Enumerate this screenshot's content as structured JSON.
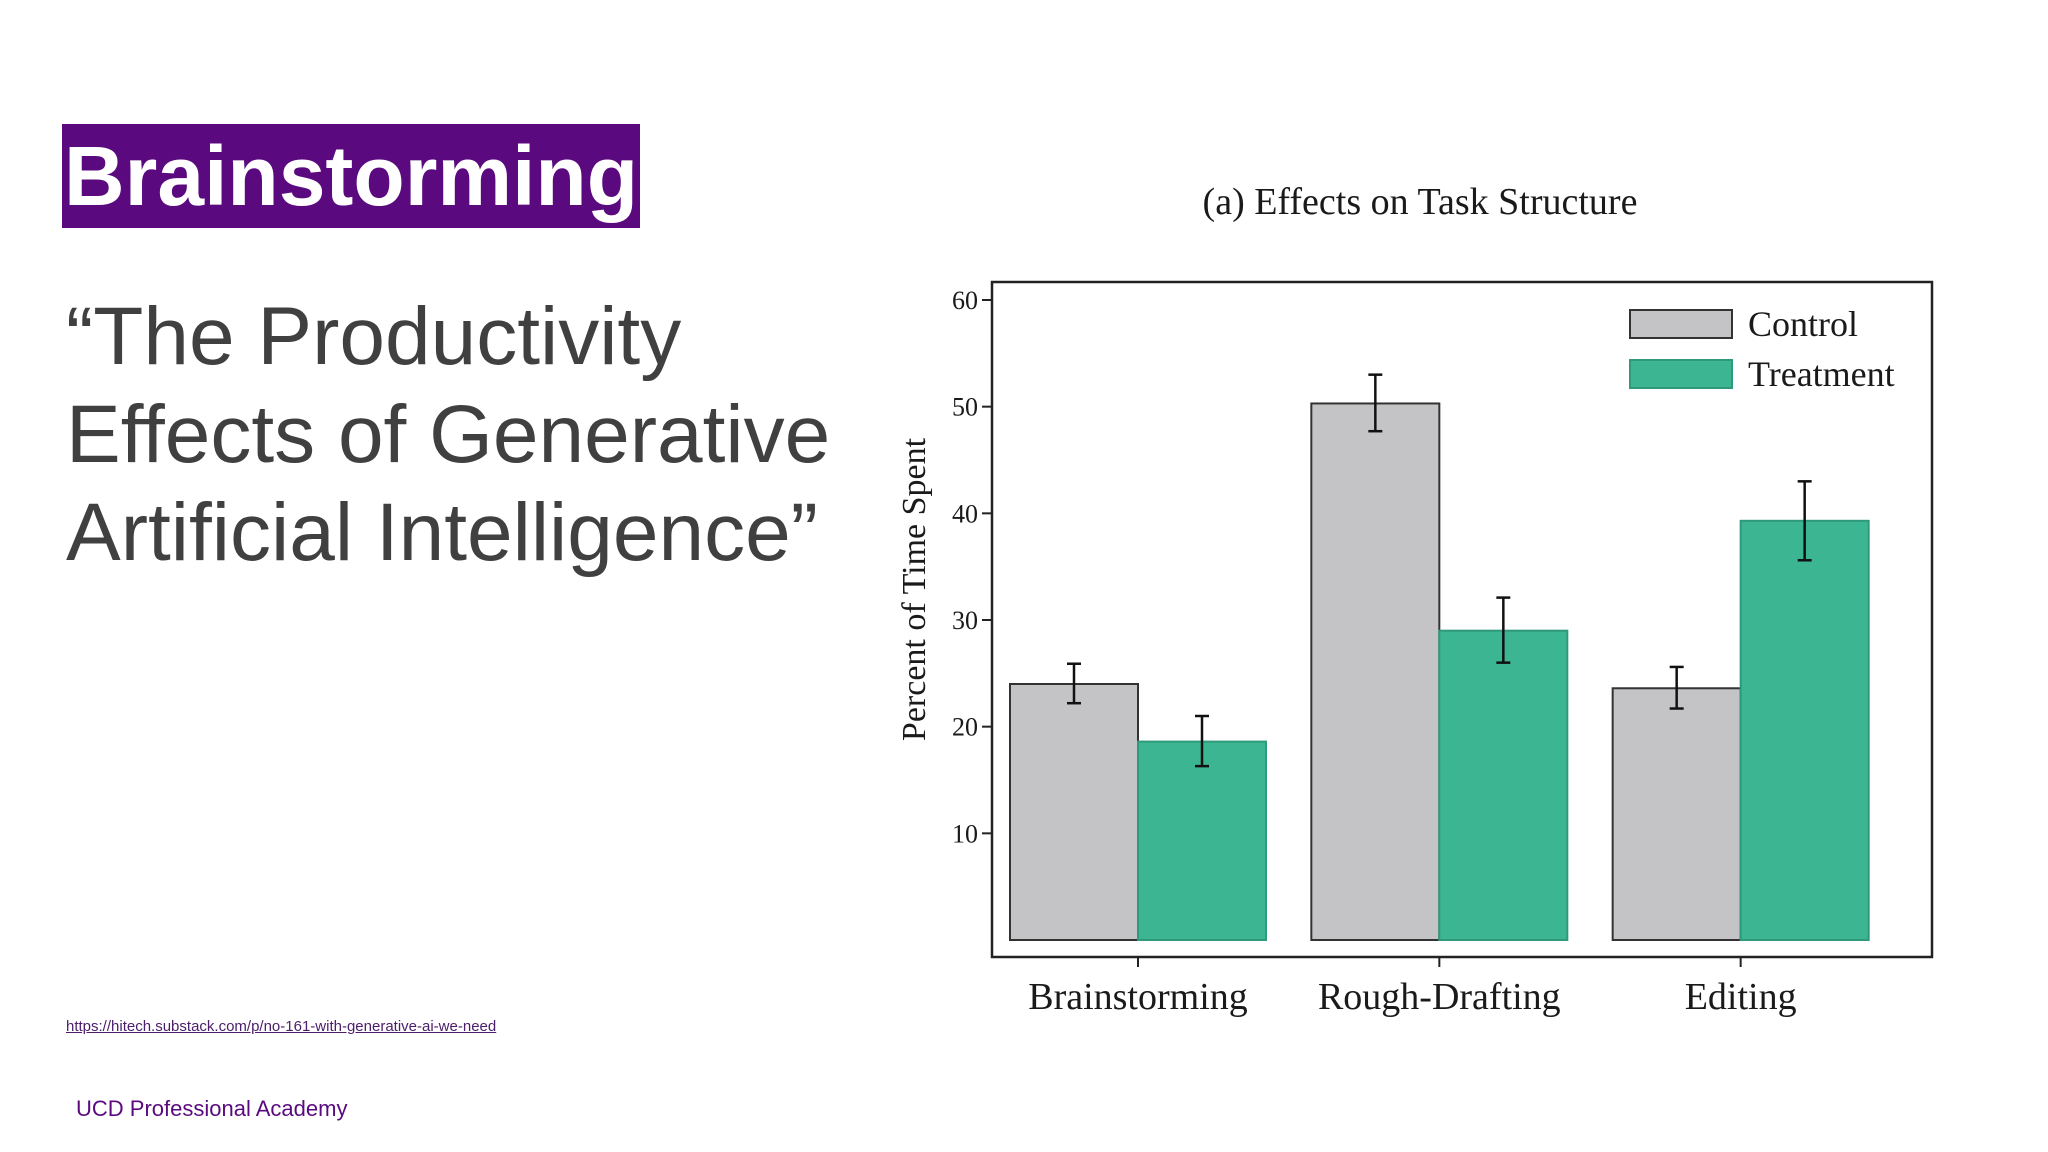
{
  "slide": {
    "title": "Brainstorming",
    "quote": "“The Productivity Effects of Generative Artificial Intelligence”",
    "source_url": "https://hitech.substack.com/p/no-161-with-generative-ai-we-need",
    "footer": "UCD Professional Academy"
  },
  "colors": {
    "title_background": "#5a0a7e",
    "control": "#c4c4c6",
    "treatment": "#3cb593"
  },
  "chart_data": {
    "type": "bar",
    "title": "(a) Effects on Task Structure",
    "xlabel": "",
    "ylabel": "Percent of Time Spent",
    "categories": [
      "Brainstorming",
      "Rough-Drafting",
      "Editing"
    ],
    "yticks": [
      10,
      20,
      30,
      40,
      50,
      60
    ],
    "ylim": [
      0,
      60
    ],
    "legend_position": "top-right",
    "grid": false,
    "series": [
      {
        "name": "Control",
        "color": "#c4c4c6",
        "values": [
          24,
          50.3,
          23.6
        ],
        "error_low": [
          22.2,
          47.7,
          21.7
        ],
        "error_high": [
          25.9,
          53,
          25.6
        ]
      },
      {
        "name": "Treatment",
        "color": "#3cb593",
        "values": [
          18.6,
          29,
          39.3
        ],
        "error_low": [
          16.3,
          26,
          35.6
        ],
        "error_high": [
          21,
          32.1,
          43
        ]
      }
    ]
  }
}
